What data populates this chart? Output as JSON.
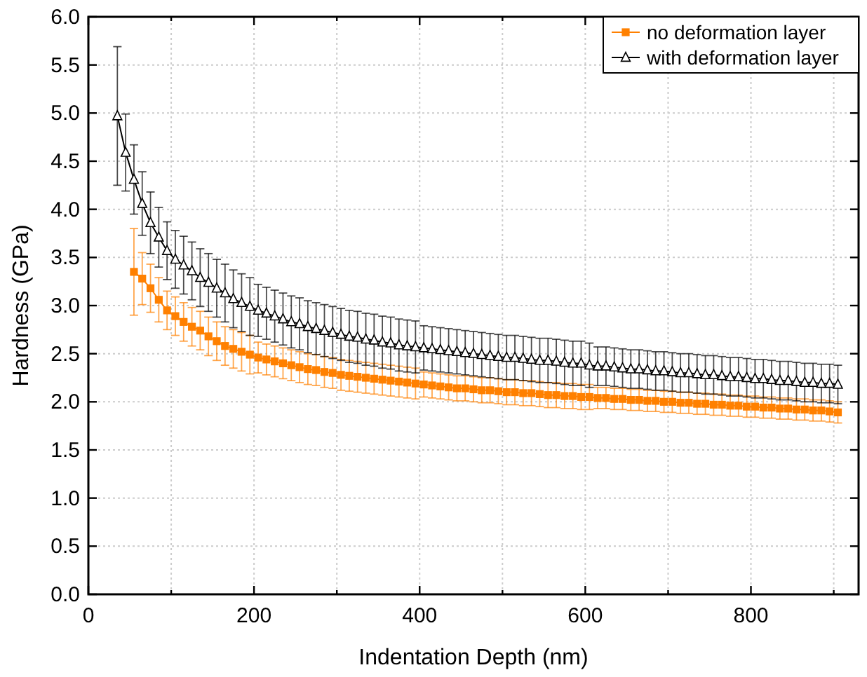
{
  "chart_data": {
    "type": "line",
    "xlabel": "Indentation Depth (nm)",
    "ylabel": "Hardness (GPa)",
    "xlim": [
      0,
      930
    ],
    "xticks": [
      0,
      {
        "value": 100,
        "label": null
      },
      200,
      {
        "value": 300,
        "label": null
      },
      400,
      {
        "value": 500,
        "label": null
      },
      600,
      {
        "value": 700,
        "label": null
      },
      800,
      {
        "value": 900,
        "label": null
      }
    ],
    "ylim": [
      0,
      6
    ],
    "yticks": [
      {
        "value": 0,
        "label": "0.0"
      },
      {
        "value": 0.5,
        "label": "0.5"
      },
      {
        "value": 1,
        "label": "1.0"
      },
      {
        "value": 1.5,
        "label": "1.5"
      },
      {
        "value": 2,
        "label": "2.0"
      },
      {
        "value": 2.5,
        "label": "2.5"
      },
      {
        "value": 3,
        "label": "3.0"
      },
      {
        "value": 3.5,
        "label": "3.5"
      },
      {
        "value": 4,
        "label": "4.0"
      },
      {
        "value": 4.5,
        "label": "4.5"
      },
      {
        "value": 5,
        "label": "5.0"
      },
      {
        "value": 5.5,
        "label": "5.5"
      },
      {
        "value": 6,
        "label": "6.0"
      }
    ],
    "grid": true,
    "legend": "top right",
    "line_style": "solid",
    "series": [
      {
        "name": "no deformation layer",
        "color": "#ff8000",
        "marker": "square",
        "x": [
          55,
          65,
          75,
          85,
          95,
          105,
          115,
          125,
          135,
          145,
          155,
          165,
          175,
          185,
          195,
          205,
          215,
          225,
          235,
          245,
          255,
          265,
          275,
          285,
          295,
          305,
          315,
          325,
          335,
          345,
          355,
          365,
          375,
          385,
          395,
          405,
          415,
          425,
          435,
          445,
          455,
          465,
          475,
          485,
          495,
          505,
          515,
          525,
          535,
          545,
          555,
          565,
          575,
          585,
          595,
          605,
          615,
          625,
          635,
          645,
          655,
          665,
          675,
          685,
          695,
          705,
          715,
          725,
          735,
          745,
          755,
          765,
          775,
          785,
          795,
          805,
          815,
          825,
          835,
          845,
          855,
          865,
          875,
          885,
          895,
          905
        ],
        "values": [
          3.35,
          3.28,
          3.18,
          3.06,
          2.95,
          2.89,
          2.83,
          2.78,
          2.74,
          2.68,
          2.63,
          2.58,
          2.55,
          2.52,
          2.49,
          2.46,
          2.44,
          2.42,
          2.4,
          2.38,
          2.36,
          2.34,
          2.33,
          2.31,
          2.3,
          2.28,
          2.27,
          2.26,
          2.25,
          2.24,
          2.23,
          2.22,
          2.21,
          2.2,
          2.19,
          2.18,
          2.17,
          2.16,
          2.15,
          2.14,
          2.14,
          2.13,
          2.12,
          2.12,
          2.11,
          2.1,
          2.1,
          2.09,
          2.09,
          2.08,
          2.07,
          2.07,
          2.06,
          2.06,
          2.05,
          2.05,
          2.04,
          2.04,
          2.03,
          2.03,
          2.02,
          2.02,
          2.01,
          2.01,
          2.0,
          2.0,
          1.99,
          1.99,
          1.98,
          1.98,
          1.97,
          1.97,
          1.96,
          1.96,
          1.95,
          1.95,
          1.94,
          1.94,
          1.93,
          1.93,
          1.92,
          1.92,
          1.91,
          1.91,
          1.9,
          1.89
        ],
        "errors": [
          0.45,
          0.27,
          0.25,
          0.23,
          0.2,
          0.2,
          0.2,
          0.2,
          0.2,
          0.2,
          0.2,
          0.2,
          0.2,
          0.2,
          0.2,
          0.16,
          0.16,
          0.16,
          0.16,
          0.16,
          0.16,
          0.16,
          0.16,
          0.16,
          0.16,
          0.16,
          0.16,
          0.16,
          0.16,
          0.16,
          0.16,
          0.16,
          0.16,
          0.16,
          0.16,
          0.13,
          0.13,
          0.13,
          0.13,
          0.13,
          0.13,
          0.13,
          0.13,
          0.13,
          0.13,
          0.13,
          0.13,
          0.13,
          0.13,
          0.13,
          0.13,
          0.13,
          0.13,
          0.13,
          0.13,
          0.13,
          0.11,
          0.11,
          0.11,
          0.11,
          0.11,
          0.11,
          0.11,
          0.11,
          0.11,
          0.11,
          0.11,
          0.11,
          0.11,
          0.11,
          0.11,
          0.11,
          0.11,
          0.11,
          0.11,
          0.11,
          0.11,
          0.11,
          0.11,
          0.11,
          0.11,
          0.11,
          0.11,
          0.11,
          0.11,
          0.11
        ]
      },
      {
        "name": "with deformation layer",
        "color": "#000000",
        "marker": "triangle",
        "x": [
          35,
          45,
          55,
          65,
          75,
          85,
          95,
          105,
          115,
          125,
          135,
          145,
          155,
          165,
          175,
          185,
          195,
          205,
          215,
          225,
          235,
          245,
          255,
          265,
          275,
          285,
          295,
          305,
          315,
          325,
          335,
          345,
          355,
          365,
          375,
          385,
          395,
          405,
          415,
          425,
          435,
          445,
          455,
          465,
          475,
          485,
          495,
          505,
          515,
          525,
          535,
          545,
          555,
          565,
          575,
          585,
          595,
          605,
          615,
          625,
          635,
          645,
          655,
          665,
          675,
          685,
          695,
          705,
          715,
          725,
          735,
          745,
          755,
          765,
          775,
          785,
          795,
          805,
          815,
          825,
          835,
          845,
          855,
          865,
          875,
          885,
          895,
          905
        ],
        "values": [
          4.97,
          4.59,
          4.31,
          4.06,
          3.86,
          3.71,
          3.57,
          3.48,
          3.42,
          3.36,
          3.29,
          3.24,
          3.18,
          3.13,
          3.07,
          3.03,
          2.99,
          2.95,
          2.92,
          2.89,
          2.86,
          2.83,
          2.81,
          2.78,
          2.76,
          2.74,
          2.72,
          2.7,
          2.68,
          2.67,
          2.65,
          2.64,
          2.62,
          2.61,
          2.59,
          2.58,
          2.57,
          2.56,
          2.55,
          2.54,
          2.53,
          2.52,
          2.51,
          2.5,
          2.49,
          2.48,
          2.47,
          2.46,
          2.46,
          2.45,
          2.44,
          2.43,
          2.43,
          2.42,
          2.41,
          2.4,
          2.4,
          2.38,
          2.37,
          2.37,
          2.36,
          2.35,
          2.34,
          2.34,
          2.33,
          2.32,
          2.32,
          2.31,
          2.3,
          2.3,
          2.29,
          2.28,
          2.28,
          2.27,
          2.26,
          2.26,
          2.25,
          2.24,
          2.24,
          2.23,
          2.22,
          2.22,
          2.21,
          2.2,
          2.2,
          2.19,
          2.19,
          2.18
        ],
        "errors": [
          0.72,
          0.4,
          0.36,
          0.33,
          0.32,
          0.31,
          0.3,
          0.3,
          0.3,
          0.3,
          0.3,
          0.3,
          0.3,
          0.3,
          0.3,
          0.3,
          0.3,
          0.27,
          0.27,
          0.27,
          0.27,
          0.27,
          0.27,
          0.27,
          0.27,
          0.27,
          0.27,
          0.27,
          0.27,
          0.27,
          0.27,
          0.27,
          0.27,
          0.27,
          0.27,
          0.27,
          0.27,
          0.23,
          0.23,
          0.23,
          0.23,
          0.23,
          0.23,
          0.23,
          0.23,
          0.23,
          0.23,
          0.23,
          0.23,
          0.23,
          0.23,
          0.23,
          0.23,
          0.23,
          0.23,
          0.23,
          0.23,
          0.23,
          0.2,
          0.2,
          0.2,
          0.2,
          0.2,
          0.2,
          0.2,
          0.2,
          0.2,
          0.2,
          0.2,
          0.2,
          0.2,
          0.2,
          0.2,
          0.2,
          0.2,
          0.2,
          0.2,
          0.2,
          0.2,
          0.2,
          0.2,
          0.2,
          0.2,
          0.2,
          0.2,
          0.2,
          0.2,
          0.2
        ]
      }
    ]
  }
}
